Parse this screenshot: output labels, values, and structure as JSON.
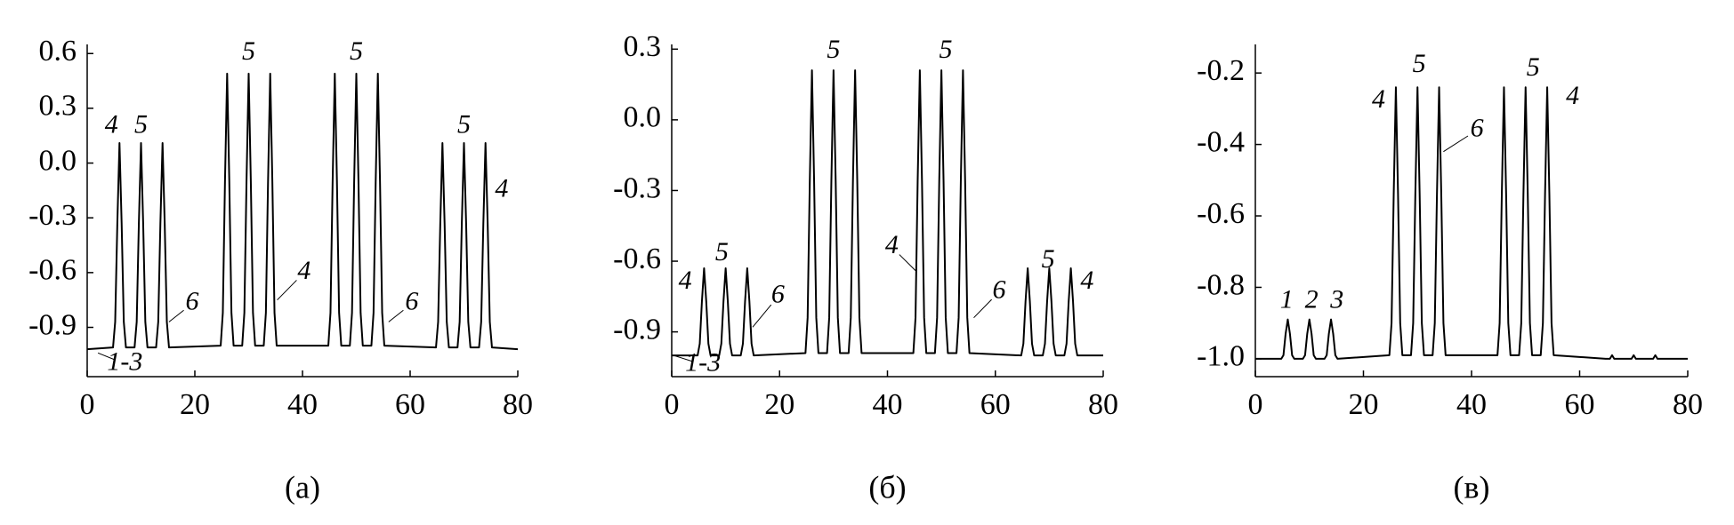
{
  "chart_data": [
    {
      "type": "line",
      "xlabel": "(а)",
      "x": [
        0,
        4.8,
        5.2,
        5.6,
        6,
        6.4,
        6.8,
        7.2,
        8.8,
        9.2,
        9.6,
        10,
        10.4,
        10.8,
        11.2,
        12.8,
        13.2,
        13.6,
        14,
        14.4,
        14.8,
        15.2,
        24.8,
        25.2,
        25.6,
        26,
        26.4,
        26.8,
        27.2,
        28.8,
        29.2,
        29.6,
        30,
        30.4,
        30.8,
        31.2,
        32.8,
        33.2,
        33.6,
        34,
        34.4,
        34.8,
        35.2,
        44.8,
        45.2,
        45.6,
        46,
        46.4,
        46.8,
        47.2,
        48.8,
        49.2,
        49.6,
        50,
        50.4,
        50.8,
        51.2,
        52.8,
        53.2,
        53.6,
        54,
        54.4,
        54.8,
        55.2,
        64.8,
        65.2,
        65.6,
        66,
        66.4,
        66.8,
        67.2,
        68.8,
        69.2,
        69.6,
        70,
        70.4,
        70.8,
        71.2,
        72.8,
        73.2,
        73.6,
        74,
        74.4,
        74.8,
        75.2,
        80
      ],
      "color": "#000000",
      "values": [
        -1.02,
        -1.01,
        -0.87,
        -0.33,
        0.11,
        -0.33,
        -0.87,
        -1.01,
        -1.01,
        -0.87,
        -0.33,
        0.11,
        -0.33,
        -0.87,
        -1.01,
        -1.01,
        -0.87,
        -0.33,
        0.11,
        -0.33,
        -0.87,
        -1.01,
        -1.0,
        -0.82,
        -0.1,
        0.49,
        -0.1,
        -0.82,
        -1.0,
        -1.0,
        -0.82,
        -0.1,
        0.49,
        -0.1,
        -0.82,
        -1.0,
        -1.0,
        -0.82,
        -0.1,
        0.49,
        -0.1,
        -0.82,
        -1.0,
        -1.0,
        -0.82,
        -0.1,
        0.49,
        -0.1,
        -0.82,
        -1.0,
        -1.0,
        -0.82,
        -0.1,
        0.49,
        -0.1,
        -0.82,
        -1.0,
        -1.0,
        -0.82,
        -0.1,
        0.49,
        -0.1,
        -0.82,
        -1.0,
        -1.01,
        -0.87,
        -0.33,
        0.11,
        -0.33,
        -0.87,
        -1.01,
        -1.01,
        -0.87,
        -0.33,
        0.11,
        -0.33,
        -0.87,
        -1.01,
        -1.01,
        -0.87,
        -0.33,
        0.11,
        -0.33,
        -0.87,
        -1.01,
        -1.02
      ],
      "xlim": [
        0,
        80
      ],
      "xticks": [
        0,
        20,
        40,
        60,
        80
      ],
      "ylim": [
        -1.17,
        0.65
      ],
      "yticks": [
        -0.9,
        -0.6,
        -0.3,
        {
          "value": 0,
          "label": "0.0"
        },
        0.3,
        0.6
      ],
      "annotations": [
        {
          "text": "4",
          "x": 4.5,
          "y": 0.2
        },
        {
          "text": "5",
          "x": 10,
          "y": 0.2
        },
        {
          "text": "5",
          "x": 30,
          "y": 0.6
        },
        {
          "text": "5",
          "x": 50,
          "y": 0.6
        },
        {
          "text": "5",
          "x": 70,
          "y": 0.2
        },
        {
          "text": "4",
          "x": 77,
          "y": -0.15
        },
        {
          "text": "6",
          "x": 19.5,
          "y": -0.77,
          "xy": [
            15.2,
            -0.87
          ]
        },
        {
          "text": "4",
          "x": 40.3,
          "y": -0.6,
          "xy": [
            35.3,
            -0.75
          ]
        },
        {
          "text": "6",
          "x": 60.3,
          "y": -0.77,
          "xy": [
            56,
            -0.87
          ]
        },
        {
          "text": "1-3",
          "x": 7,
          "y": -1.1,
          "xy": [
            2,
            -1.04
          ]
        }
      ]
    },
    {
      "type": "line",
      "xlabel": "(б)",
      "x": [
        0,
        4.8,
        5.2,
        5.6,
        6,
        6.4,
        6.8,
        7.2,
        8.8,
        9.2,
        9.6,
        10,
        10.4,
        10.8,
        11.2,
        12.8,
        13.2,
        13.6,
        14,
        14.4,
        14.8,
        15.2,
        24.8,
        25.2,
        25.6,
        26,
        26.4,
        26.8,
        27.2,
        28.8,
        29.2,
        29.6,
        30,
        30.4,
        30.8,
        31.2,
        32.8,
        33.2,
        33.6,
        34,
        34.4,
        34.8,
        35.2,
        44.8,
        45.2,
        45.6,
        46,
        46.4,
        46.8,
        47.2,
        48.8,
        49.2,
        49.6,
        50,
        50.4,
        50.8,
        51.2,
        52.8,
        53.2,
        53.6,
        54,
        54.4,
        54.8,
        55.2,
        64.8,
        65.2,
        65.6,
        66,
        66.4,
        66.8,
        67.2,
        68.8,
        69.2,
        69.6,
        70,
        70.4,
        70.8,
        71.2,
        72.8,
        73.2,
        73.6,
        74,
        74.4,
        74.8,
        75.2,
        80
      ],
      "color": "#000000",
      "values": [
        -1.0,
        -1.0,
        -0.95,
        -0.77,
        -0.63,
        -0.77,
        -0.95,
        -1.0,
        -1.0,
        -0.95,
        -0.77,
        -0.63,
        -0.77,
        -0.95,
        -1.0,
        -1.0,
        -0.95,
        -0.77,
        -0.63,
        -0.77,
        -0.95,
        -1.0,
        -0.99,
        -0.84,
        -0.26,
        0.21,
        -0.26,
        -0.84,
        -0.99,
        -0.99,
        -0.84,
        -0.26,
        0.21,
        -0.26,
        -0.84,
        -0.99,
        -0.99,
        -0.84,
        -0.26,
        0.21,
        -0.26,
        -0.84,
        -0.99,
        -0.99,
        -0.84,
        -0.26,
        0.21,
        -0.26,
        -0.84,
        -0.99,
        -0.99,
        -0.84,
        -0.26,
        0.21,
        -0.26,
        -0.84,
        -0.99,
        -0.99,
        -0.84,
        -0.26,
        0.21,
        -0.26,
        -0.84,
        -0.99,
        -1.0,
        -0.95,
        -0.77,
        -0.63,
        -0.77,
        -0.95,
        -1.0,
        -1.0,
        -0.95,
        -0.77,
        -0.63,
        -0.77,
        -0.95,
        -1.0,
        -1.0,
        -0.95,
        -0.77,
        -0.63,
        -0.77,
        -0.95,
        -1.0,
        -1.0
      ],
      "xlim": [
        0,
        80
      ],
      "xticks": [
        0,
        20,
        40,
        60,
        80
      ],
      "ylim": [
        -1.09,
        0.32
      ],
      "yticks": [
        -0.9,
        -0.6,
        -0.3,
        {
          "value": 0,
          "label": "0.0"
        },
        0.3
      ],
      "annotations": [
        {
          "text": "4",
          "x": 2.5,
          "y": -0.69
        },
        {
          "text": "5",
          "x": 9.3,
          "y": -0.57
        },
        {
          "text": "5",
          "x": 30,
          "y": 0.29
        },
        {
          "text": "5",
          "x": 50.8,
          "y": 0.29
        },
        {
          "text": "6",
          "x": 19.7,
          "y": -0.75,
          "xy": [
            15,
            -0.88
          ]
        },
        {
          "text": "4",
          "x": 40.8,
          "y": -0.54,
          "xy": [
            45.2,
            -0.64
          ]
        },
        {
          "text": "6",
          "x": 60.7,
          "y": -0.73,
          "xy": [
            56,
            -0.84
          ]
        },
        {
          "text": "5",
          "x": 69.8,
          "y": -0.6
        },
        {
          "text": "4",
          "x": 77,
          "y": -0.69
        },
        {
          "text": "1-3",
          "x": 5.8,
          "y": -1.04,
          "xy": [
            0.4,
            -1.0
          ]
        }
      ]
    },
    {
      "type": "line",
      "xlabel": "(в)",
      "x": [
        0,
        4.8,
        5.2,
        5.6,
        6,
        6.4,
        6.8,
        7.2,
        8.8,
        9.2,
        9.6,
        10,
        10.4,
        10.8,
        11.2,
        12.8,
        13.2,
        13.6,
        14,
        14.4,
        14.8,
        15.2,
        24.8,
        25.2,
        25.6,
        26,
        26.4,
        26.8,
        27.2,
        28.8,
        29.2,
        29.6,
        30,
        30.4,
        30.8,
        31.2,
        32.8,
        33.2,
        33.6,
        34,
        34.4,
        34.8,
        35.2,
        44.8,
        45.2,
        45.6,
        46,
        46.4,
        46.8,
        47.2,
        48.8,
        49.2,
        49.6,
        50,
        50.4,
        50.8,
        51.2,
        52.8,
        53.2,
        53.6,
        54,
        54.4,
        54.8,
        55.2,
        64.8,
        65.2,
        65.6,
        66,
        66.4,
        66.8,
        67.2,
        68.8,
        69.2,
        69.6,
        70,
        70.4,
        70.8,
        71.2,
        72.8,
        73.2,
        73.6,
        74,
        74.4,
        74.8,
        75.2,
        80
      ],
      "color": "#000000",
      "values": [
        -1.0,
        -1.0,
        -0.99,
        -0.93,
        -0.89,
        -0.93,
        -0.99,
        -1.0,
        -1.0,
        -0.99,
        -0.93,
        -0.89,
        -0.93,
        -0.99,
        -1.0,
        -1.0,
        -0.99,
        -0.93,
        -0.89,
        -0.93,
        -0.99,
        -1.0,
        -0.99,
        -0.9,
        -0.54,
        -0.24,
        -0.54,
        -0.9,
        -0.99,
        -0.99,
        -0.9,
        -0.54,
        -0.24,
        -0.54,
        -0.9,
        -0.99,
        -0.99,
        -0.9,
        -0.54,
        -0.24,
        -0.54,
        -0.9,
        -0.99,
        -0.99,
        -0.9,
        -0.54,
        -0.24,
        -0.54,
        -0.9,
        -0.99,
        -0.99,
        -0.9,
        -0.54,
        -0.24,
        -0.54,
        -0.9,
        -0.99,
        -0.99,
        -0.9,
        -0.54,
        -0.24,
        -0.54,
        -0.9,
        -0.99,
        -1.0,
        -1.0,
        -1.0,
        -0.99,
        -1.0,
        -1.0,
        -1.0,
        -1.0,
        -1.0,
        -1.0,
        -0.99,
        -1.0,
        -1.0,
        -1.0,
        -1.0,
        -1.0,
        -1.0,
        -0.99,
        -1.0,
        -1.0,
        -1.0,
        -1.0
      ],
      "xlim": [
        0,
        80
      ],
      "xticks": [
        0,
        20,
        40,
        60,
        80
      ],
      "ylim": [
        -1.05,
        -0.12
      ],
      "yticks": [
        {
          "value": -1,
          "label": "-1.0"
        },
        -0.8,
        -0.6,
        -0.4,
        -0.2
      ],
      "annotations": [
        {
          "text": "1",
          "x": 5.8,
          "y": -0.84
        },
        {
          "text": "2",
          "x": 10.4,
          "y": -0.84
        },
        {
          "text": "3",
          "x": 15.1,
          "y": -0.84
        },
        {
          "text": "4",
          "x": 22.8,
          "y": -0.28
        },
        {
          "text": "5",
          "x": 30.3,
          "y": -0.18
        },
        {
          "text": "6",
          "x": 41,
          "y": -0.36,
          "xy": [
            34.8,
            -0.42
          ]
        },
        {
          "text": "5",
          "x": 51.4,
          "y": -0.19
        },
        {
          "text": "4",
          "x": 58.7,
          "y": -0.27
        }
      ]
    }
  ]
}
